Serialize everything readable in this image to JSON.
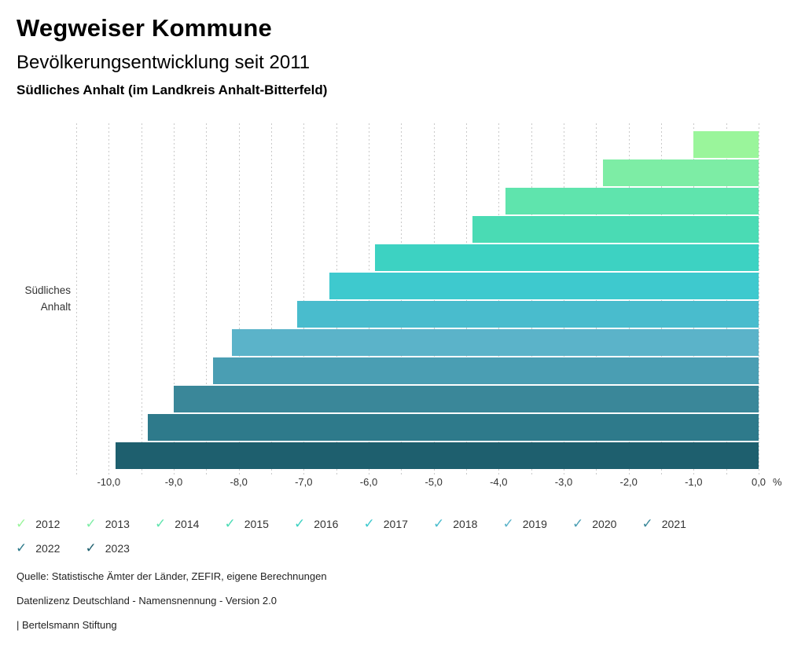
{
  "header": {
    "title": "Wegweiser Kommune",
    "subtitle": "Bevölkerungsentwicklung seit 2011",
    "region": "Südliches Anhalt (im Landkreis Anhalt-Bitterfeld)"
  },
  "chart_data": {
    "type": "bar",
    "orientation": "horizontal",
    "title": "Bevölkerungsentwicklung seit 2011",
    "category_label": "Südliches Anhalt",
    "unit_label": "%",
    "xlim": [
      -10.5,
      0
    ],
    "gridline_step": 0.5,
    "grid": true,
    "legend_position": "bottom",
    "series": [
      {
        "year": "2012",
        "value": -1.0,
        "color": "#9af59b"
      },
      {
        "year": "2013",
        "value": -2.4,
        "color": "#7deda5"
      },
      {
        "year": "2014",
        "value": -3.9,
        "color": "#5fe4ad"
      },
      {
        "year": "2015",
        "value": -4.4,
        "color": "#4adbb4"
      },
      {
        "year": "2016",
        "value": -5.9,
        "color": "#3dd2c2"
      },
      {
        "year": "2017",
        "value": -6.6,
        "color": "#3ec9ce"
      },
      {
        "year": "2018",
        "value": -7.1,
        "color": "#49bccd"
      },
      {
        "year": "2019",
        "value": -8.1,
        "color": "#5bb3c9"
      },
      {
        "year": "2020",
        "value": -8.4,
        "color": "#4a9eb3"
      },
      {
        "year": "2021",
        "value": -9.0,
        "color": "#3a8799"
      },
      {
        "year": "2022",
        "value": -9.4,
        "color": "#2e7a8b"
      },
      {
        "year": "2023",
        "value": -9.9,
        "color": "#1e5f6e"
      }
    ],
    "x_ticks": [
      {
        "value": -10,
        "label": "-10,0"
      },
      {
        "value": -9,
        "label": "-9,0"
      },
      {
        "value": -8,
        "label": "-8,0"
      },
      {
        "value": -7,
        "label": "-7,0"
      },
      {
        "value": -6,
        "label": "-6,0"
      },
      {
        "value": -5,
        "label": "-5,0"
      },
      {
        "value": -4,
        "label": "-4,0"
      },
      {
        "value": -3,
        "label": "-3,0"
      },
      {
        "value": -2,
        "label": "-2,0"
      },
      {
        "value": -1,
        "label": "-1,0"
      },
      {
        "value": 0,
        "label": "0,0"
      }
    ]
  },
  "legend": {
    "check_glyph": "✓",
    "items_per_row": 10
  },
  "footer": {
    "source": "Quelle: Statistische Ämter der Länder, ZEFIR, eigene Berechnungen",
    "license": "Datenlizenz Deutschland - Namensnennung - Version 2.0",
    "attribution": "| Bertelsmann Stiftung"
  }
}
